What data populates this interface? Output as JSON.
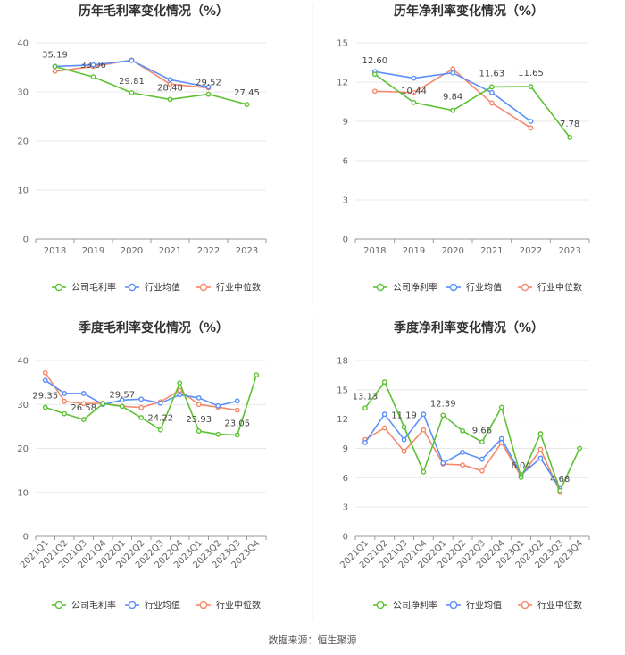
{
  "source": "数据来源：恒生聚源",
  "colors": {
    "company": "#5cc233",
    "avg": "#5b8ff9",
    "median": "#f4896b",
    "grid": "#e8e8e8",
    "axis": "#999999"
  },
  "chart_data": [
    {
      "id": "annual-gross",
      "type": "line",
      "title": "历年毛利率变化情况（%）",
      "categories": [
        "2018",
        "2019",
        "2020",
        "2021",
        "2022",
        "2023"
      ],
      "ylim": [
        0,
        40
      ],
      "yticks": [
        0,
        10,
        20,
        30,
        40
      ],
      "series": [
        {
          "name": "公司毛利率",
          "key": "company",
          "values": [
            35.19,
            33.06,
            29.81,
            28.48,
            29.52,
            27.45
          ]
        },
        {
          "name": "行业均值",
          "key": "avg",
          "values": [
            35.2,
            35.5,
            36.4,
            32.5,
            31.0,
            null
          ]
        },
        {
          "name": "行业中位数",
          "key": "median",
          "values": [
            34.2,
            35.2,
            36.5,
            31.6,
            30.8,
            null
          ]
        }
      ],
      "data_labels": [
        "35.19",
        "33.06",
        "29.81",
        "28.48",
        "29.52",
        "27.45"
      ],
      "legend": [
        "公司毛利率",
        "行业均值",
        "行业中位数"
      ]
    },
    {
      "id": "annual-net",
      "type": "line",
      "title": "历年净利率变化情况（%）",
      "categories": [
        "2018",
        "2019",
        "2020",
        "2021",
        "2022",
        "2023"
      ],
      "ylim": [
        0,
        15
      ],
      "yticks": [
        0,
        3,
        6,
        9,
        12,
        15
      ],
      "series": [
        {
          "name": "公司净利率",
          "key": "company",
          "values": [
            12.6,
            10.44,
            9.84,
            11.63,
            11.65,
            7.78
          ]
        },
        {
          "name": "行业均值",
          "key": "avg",
          "values": [
            12.8,
            12.3,
            12.7,
            11.2,
            9.0,
            null
          ]
        },
        {
          "name": "行业中位数",
          "key": "median",
          "values": [
            11.3,
            11.2,
            13.0,
            10.4,
            8.5,
            null
          ]
        }
      ],
      "data_labels": [
        "12.60",
        "10.44",
        "9.84",
        "11.63",
        "11.65",
        "7.78"
      ],
      "legend": [
        "公司净利率",
        "行业均值",
        "行业中位数"
      ]
    },
    {
      "id": "quarterly-gross",
      "type": "line",
      "title": "季度毛利率变化情况（%）",
      "categories": [
        "2021Q1",
        "2021Q2",
        "2021Q3",
        "2021Q4",
        "2022Q1",
        "2022Q2",
        "2022Q3",
        "2022Q4",
        "2023Q1",
        "2023Q2",
        "2023Q3",
        "2023Q4"
      ],
      "ylim": [
        0,
        40
      ],
      "yticks": [
        0,
        10,
        20,
        30,
        40
      ],
      "series": [
        {
          "name": "公司毛利率",
          "key": "company",
          "values": [
            29.35,
            27.9,
            26.58,
            30.2,
            29.57,
            27.0,
            24.22,
            34.9,
            23.93,
            23.2,
            23.05,
            36.7
          ]
        },
        {
          "name": "行业均值",
          "key": "avg",
          "values": [
            35.5,
            32.5,
            32.5,
            30.0,
            31.0,
            31.2,
            30.3,
            32.2,
            31.5,
            29.7,
            30.8,
            null
          ]
        },
        {
          "name": "行业中位数",
          "key": "median",
          "values": [
            37.2,
            30.7,
            30.2,
            30.3,
            29.6,
            29.3,
            30.6,
            33.2,
            30.0,
            29.4,
            28.7,
            null
          ]
        }
      ],
      "data_labels": [
        "29.35",
        "",
        "26.58",
        "",
        "29.57",
        "",
        "24.22",
        "",
        "23.93",
        "",
        "23.05",
        ""
      ],
      "legend": [
        "公司毛利率",
        "行业均值",
        "行业中位数"
      ]
    },
    {
      "id": "quarterly-net",
      "type": "line",
      "title": "季度净利率变化情况（%）",
      "categories": [
        "2021Q1",
        "2021Q2",
        "2021Q3",
        "2021Q4",
        "2022Q1",
        "2022Q2",
        "2022Q3",
        "2022Q4",
        "2023Q1",
        "2023Q2",
        "2023Q3",
        "2023Q4"
      ],
      "ylim": [
        0,
        18
      ],
      "yticks": [
        0,
        3,
        6,
        9,
        12,
        15,
        18
      ],
      "series": [
        {
          "name": "公司净利率",
          "key": "company",
          "values": [
            13.13,
            15.8,
            11.19,
            6.6,
            12.39,
            10.8,
            9.66,
            13.2,
            6.04,
            10.5,
            4.68,
            9.0
          ]
        },
        {
          "name": "行业均值",
          "key": "avg",
          "values": [
            9.6,
            12.5,
            9.9,
            12.5,
            7.5,
            8.6,
            7.9,
            10.0,
            6.3,
            8.0,
            4.9,
            null
          ]
        },
        {
          "name": "行业中位数",
          "key": "median",
          "values": [
            9.9,
            11.1,
            8.7,
            10.9,
            7.4,
            7.3,
            6.7,
            9.6,
            6.1,
            8.9,
            4.5,
            null
          ]
        }
      ],
      "data_labels": [
        "13.13",
        "",
        "11.19",
        "",
        "12.39",
        "",
        "9.66",
        "",
        "6.04",
        "",
        "4.68",
        ""
      ],
      "legend": [
        "公司净利率",
        "行业均值",
        "行业中位数"
      ]
    }
  ]
}
